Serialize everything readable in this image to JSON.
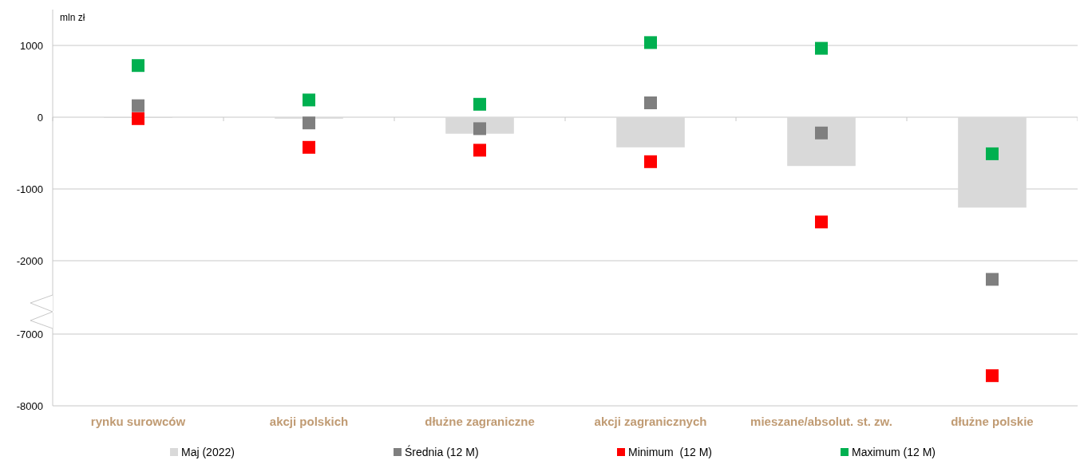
{
  "chart_data": [
    {
      "type": "scatter",
      "ylabel": "mln zł",
      "categories": [
        null,
        null,
        null,
        null,
        null,
        null
      ],
      "ylim": [
        -2700,
        1500
      ],
      "yticks": [
        1000,
        0,
        -1000,
        -2000
      ],
      "grid": "y",
      "marker": "square",
      "tick_labels": "y",
      "legend": "bottom",
      "series": [
        {
          "name": "Maj (2022)",
          "type": "bar",
          "color": "#d9d9d9",
          "values": [
            0,
            -20,
            -230,
            -420,
            -680,
            -1260
          ]
        },
        {
          "name": "Średnia (12 M)",
          "color": "#7f7f7f",
          "values": [
            160,
            -80,
            -160,
            200,
            -220,
            -2260
          ]
        },
        {
          "name": "Minimum  (12 M)",
          "color": "#ff0000",
          "values": [
            -20,
            -420,
            -460,
            -620,
            -1460,
            null
          ]
        },
        {
          "name": "Maximum (12 M)",
          "color": "#00b050",
          "values": [
            720,
            240,
            180,
            1040,
            960,
            -510
          ]
        }
      ]
    },
    {
      "type": "scatter",
      "categories": [
        "rynku surowców",
        "akcji polskich",
        "dłużne zagraniczne",
        "akcji zagranicznych",
        "mieszane/absolut. st. zw.",
        "dłużne polskie"
      ],
      "ylim": [
        -8000,
        -6700
      ],
      "yticks": [
        -7000,
        -8000
      ],
      "grid": "y",
      "marker": "square",
      "series": [
        {
          "color": "#ff0000",
          "values": [
            null,
            null,
            null,
            null,
            null,
            -7580
          ]
        }
      ]
    }
  ]
}
